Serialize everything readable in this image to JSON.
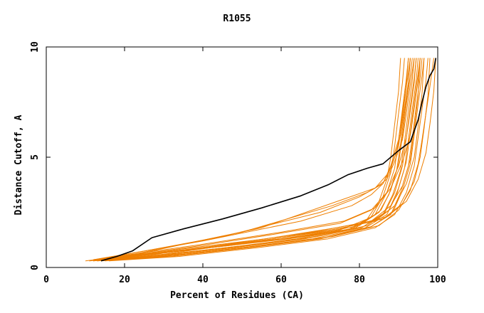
{
  "chart_data": {
    "type": "line",
    "title": "R1055",
    "xlabel": "Percent of Residues (CA)",
    "ylabel": "Distance Cutoff, A",
    "xlim": [
      0,
      100
    ],
    "ylim": [
      0,
      10
    ],
    "xticks": [
      0,
      20,
      40,
      60,
      80,
      100
    ],
    "yticks": [
      0,
      5,
      10
    ],
    "grid": false,
    "colors": {
      "highlight": "#000000",
      "others": "#ee7f00"
    },
    "highlight": {
      "x": [
        14,
        18,
        22,
        27,
        35,
        45,
        55,
        65,
        72,
        77,
        82,
        86,
        90,
        93,
        95,
        96,
        97,
        98,
        99,
        99.5
      ],
      "y": [
        0.3,
        0.5,
        0.75,
        1.35,
        1.75,
        2.2,
        2.7,
        3.25,
        3.75,
        4.2,
        4.5,
        4.7,
        5.3,
        5.7,
        6.7,
        7.5,
        8.2,
        8.7,
        9.0,
        9.5
      ]
    },
    "series": [
      {
        "x": [
          10,
          20,
          40,
          60,
          75,
          82,
          85,
          87,
          88,
          89,
          90,
          90.5
        ],
        "y": [
          0.3,
          0.5,
          0.9,
          1.3,
          1.7,
          2.2,
          3.0,
          4.0,
          5.0,
          6.5,
          8.0,
          9.5
        ]
      },
      {
        "x": [
          11,
          22,
          42,
          62,
          77,
          83,
          86,
          88,
          89,
          90,
          91,
          91.5
        ],
        "y": [
          0.3,
          0.5,
          0.9,
          1.3,
          1.7,
          2.3,
          3.2,
          4.3,
          5.5,
          7.0,
          8.4,
          9.5
        ]
      },
      {
        "x": [
          12,
          24,
          44,
          63,
          78,
          84,
          87,
          89,
          90,
          91,
          92,
          92.5
        ],
        "y": [
          0.35,
          0.55,
          0.95,
          1.35,
          1.75,
          2.4,
          3.4,
          4.5,
          5.8,
          7.2,
          8.6,
          9.5
        ]
      },
      {
        "x": [
          12,
          26,
          46,
          64,
          79,
          85,
          87.5,
          89.5,
          90.5,
          91.5,
          92.5,
          93
        ],
        "y": [
          0.3,
          0.5,
          0.9,
          1.3,
          1.8,
          2.5,
          3.3,
          4.4,
          5.6,
          7.0,
          8.3,
          9.5
        ]
      },
      {
        "x": [
          13,
          27,
          47,
          65,
          80,
          85.5,
          88,
          90,
          91,
          92,
          93,
          93.5
        ],
        "y": [
          0.35,
          0.6,
          1.0,
          1.4,
          1.9,
          2.6,
          3.5,
          4.7,
          6.0,
          7.4,
          8.7,
          9.5
        ]
      },
      {
        "x": [
          13,
          28,
          48,
          66,
          80.5,
          86,
          88.5,
          90.5,
          91.5,
          92.5,
          93.5,
          94
        ],
        "y": [
          0.3,
          0.5,
          0.9,
          1.3,
          1.8,
          2.4,
          3.3,
          4.4,
          5.7,
          7.1,
          8.5,
          9.5
        ]
      },
      {
        "x": [
          14,
          29,
          49,
          67,
          81,
          86.5,
          89,
          91,
          92,
          93,
          94,
          94.5
        ],
        "y": [
          0.35,
          0.55,
          0.95,
          1.35,
          1.85,
          2.5,
          3.4,
          4.6,
          5.9,
          7.3,
          8.6,
          9.5
        ]
      },
      {
        "x": [
          14,
          30,
          50,
          68,
          81.5,
          87,
          89.5,
          91.5,
          92.5,
          93.5,
          94.5,
          95
        ],
        "y": [
          0.3,
          0.5,
          0.9,
          1.3,
          1.8,
          2.4,
          3.3,
          4.5,
          5.8,
          7.2,
          8.5,
          9.5
        ]
      },
      {
        "x": [
          15,
          31,
          51,
          69,
          82,
          87.5,
          90,
          92,
          93,
          94,
          95,
          95.5
        ],
        "y": [
          0.35,
          0.6,
          1.0,
          1.4,
          1.9,
          2.6,
          3.6,
          4.8,
          6.1,
          7.5,
          8.8,
          9.5
        ]
      },
      {
        "x": [
          15,
          32,
          52,
          70,
          82.5,
          88,
          90.5,
          92.5,
          93.5,
          94.5,
          95.5,
          96
        ],
        "y": [
          0.3,
          0.5,
          0.9,
          1.3,
          1.8,
          2.4,
          3.4,
          4.6,
          5.9,
          7.3,
          8.6,
          9.5
        ]
      },
      {
        "x": [
          16,
          33,
          53,
          71,
          83,
          88.5,
          91,
          93,
          94,
          95,
          96,
          96.5
        ],
        "y": [
          0.35,
          0.55,
          0.95,
          1.35,
          1.85,
          2.5,
          3.5,
          4.7,
          6.0,
          7.4,
          8.7,
          9.5
        ]
      },
      {
        "x": [
          16,
          34,
          54,
          72,
          84,
          89,
          92,
          94,
          95,
          96,
          97,
          97.5
        ],
        "y": [
          0.3,
          0.5,
          0.9,
          1.3,
          1.8,
          2.4,
          3.4,
          4.6,
          5.9,
          7.2,
          8.5,
          9.5
        ]
      },
      {
        "x": [
          17,
          35,
          55,
          73,
          85,
          90,
          93,
          95,
          96,
          97,
          98,
          99
        ],
        "y": [
          0.35,
          0.6,
          1.0,
          1.4,
          1.9,
          2.6,
          3.5,
          4.7,
          5.8,
          7.0,
          8.2,
          9.5
        ]
      },
      {
        "x": [
          12,
          40,
          65,
          78,
          83,
          86,
          88,
          90,
          91,
          92,
          92.5
        ],
        "y": [
          0.35,
          1.2,
          2.1,
          2.8,
          3.3,
          3.8,
          4.6,
          5.8,
          7.0,
          8.3,
          9.5
        ]
      },
      {
        "x": [
          13,
          45,
          70,
          80,
          84,
          87,
          89,
          90.5,
          91.5,
          92.5,
          93
        ],
        "y": [
          0.35,
          1.4,
          2.5,
          3.2,
          3.6,
          4.2,
          5.0,
          6.0,
          7.2,
          8.4,
          9.5
        ]
      },
      {
        "x": [
          14,
          50,
          73,
          82,
          86,
          88,
          90,
          91,
          92,
          93
        ],
        "y": [
          0.3,
          1.6,
          2.8,
          3.4,
          3.8,
          4.5,
          5.5,
          6.8,
          8.2,
          9.5
        ]
      },
      {
        "x": [
          15,
          55,
          76,
          84,
          87,
          89,
          91,
          92,
          93,
          94
        ],
        "y": [
          0.3,
          1.8,
          3.1,
          3.6,
          4.0,
          4.8,
          5.8,
          7.0,
          8.3,
          9.5
        ]
      },
      {
        "x": [
          12,
          38,
          60,
          76,
          84,
          88,
          91,
          93,
          94,
          95,
          95.5
        ],
        "y": [
          0.35,
          1.0,
          1.6,
          2.1,
          2.7,
          3.6,
          4.8,
          6.0,
          7.2,
          8.5,
          9.5
        ]
      },
      {
        "x": [
          11,
          36,
          58,
          75,
          83,
          87,
          90,
          92,
          93,
          94,
          94.5
        ],
        "y": [
          0.3,
          0.9,
          1.5,
          2.0,
          2.6,
          3.4,
          4.6,
          5.9,
          7.1,
          8.4,
          9.5
        ]
      },
      {
        "x": [
          14,
          33,
          56,
          74,
          86,
          91,
          94,
          95.5,
          96.5,
          97.5,
          98
        ],
        "y": [
          0.4,
          0.8,
          1.3,
          1.8,
          2.2,
          2.9,
          3.9,
          5.0,
          6.3,
          7.8,
          9.5
        ]
      },
      {
        "x": [
          15,
          35,
          58,
          76,
          87,
          92,
          95,
          97,
          98,
          99,
          99.5
        ],
        "y": [
          0.4,
          0.8,
          1.3,
          1.8,
          2.3,
          3.0,
          4.0,
          5.2,
          6.5,
          8.0,
          9.5
        ]
      },
      {
        "x": [
          13,
          30,
          50,
          70,
          84,
          89,
          92,
          94,
          95,
          96,
          96.5
        ],
        "y": [
          0.3,
          0.6,
          1.1,
          1.6,
          2.1,
          2.8,
          3.8,
          5.0,
          6.4,
          7.9,
          9.5
        ]
      },
      {
        "x": [
          12,
          28,
          48,
          68,
          83,
          88,
          91,
          93,
          94,
          95,
          95.5
        ],
        "y": [
          0.3,
          0.6,
          1.1,
          1.6,
          2.1,
          2.8,
          3.7,
          4.9,
          6.3,
          7.8,
          9.5
        ]
      }
    ]
  }
}
